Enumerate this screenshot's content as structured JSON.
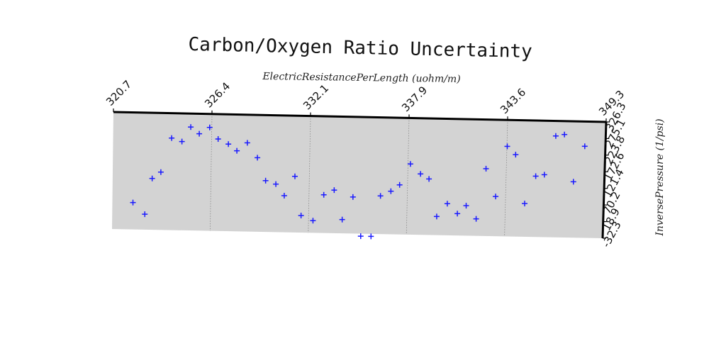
{
  "chart_data": {
    "type": "scatter",
    "title": "Carbon/Oxygen Ratio Uncertainty",
    "xlabel": "ElectricResistancePerLength (uohm/m)",
    "ylabel": "InversePressure (1/psi)",
    "xlim": [
      320.7,
      349.3
    ],
    "ylim": [
      -32.3,
      326.3
    ],
    "x_tick_labels": [
      "320.7",
      "326.4",
      "332.1",
      "337.9",
      "343.6",
      "349.3"
    ],
    "y_tick_labels": [
      "-32.3",
      "18.9",
      "70.2",
      "121.4",
      "172.6",
      "223.8",
      "275.1",
      "326.3"
    ],
    "grid": true,
    "marker": "+",
    "colors": {
      "points": "#1a1aff",
      "plot_background": "#d3d3d3",
      "grid": "#888888"
    },
    "series": [
      {
        "x": [
          321.9,
          322.6,
          323.0,
          323.5,
          324.1,
          324.7,
          325.2,
          325.7,
          326.3,
          326.8,
          327.4,
          327.9,
          328.5,
          329.1,
          329.6,
          330.2,
          330.7,
          331.3,
          331.7,
          332.4,
          333.0,
          333.6,
          334.1,
          334.7,
          335.2,
          335.8,
          336.3,
          336.9,
          337.4,
          338.0,
          338.6,
          339.1,
          339.6,
          340.2,
          340.8,
          341.3,
          341.9,
          342.4,
          343.0,
          343.6,
          344.1,
          344.7,
          345.3,
          345.8,
          346.4,
          346.9,
          347.5,
          348.1
        ],
        "y": [
          50,
          15,
          125,
          145,
          250,
          240,
          285,
          265,
          285,
          250,
          235,
          215,
          240,
          195,
          125,
          115,
          80,
          140,
          20,
          5,
          85,
          100,
          10,
          80,
          -40,
          -40,
          85,
          100,
          120,
          185,
          155,
          140,
          25,
          65,
          35,
          60,
          20,
          175,
          90,
          245,
          220,
          70,
          155,
          160,
          280,
          285,
          140,
          250
        ]
      }
    ]
  }
}
